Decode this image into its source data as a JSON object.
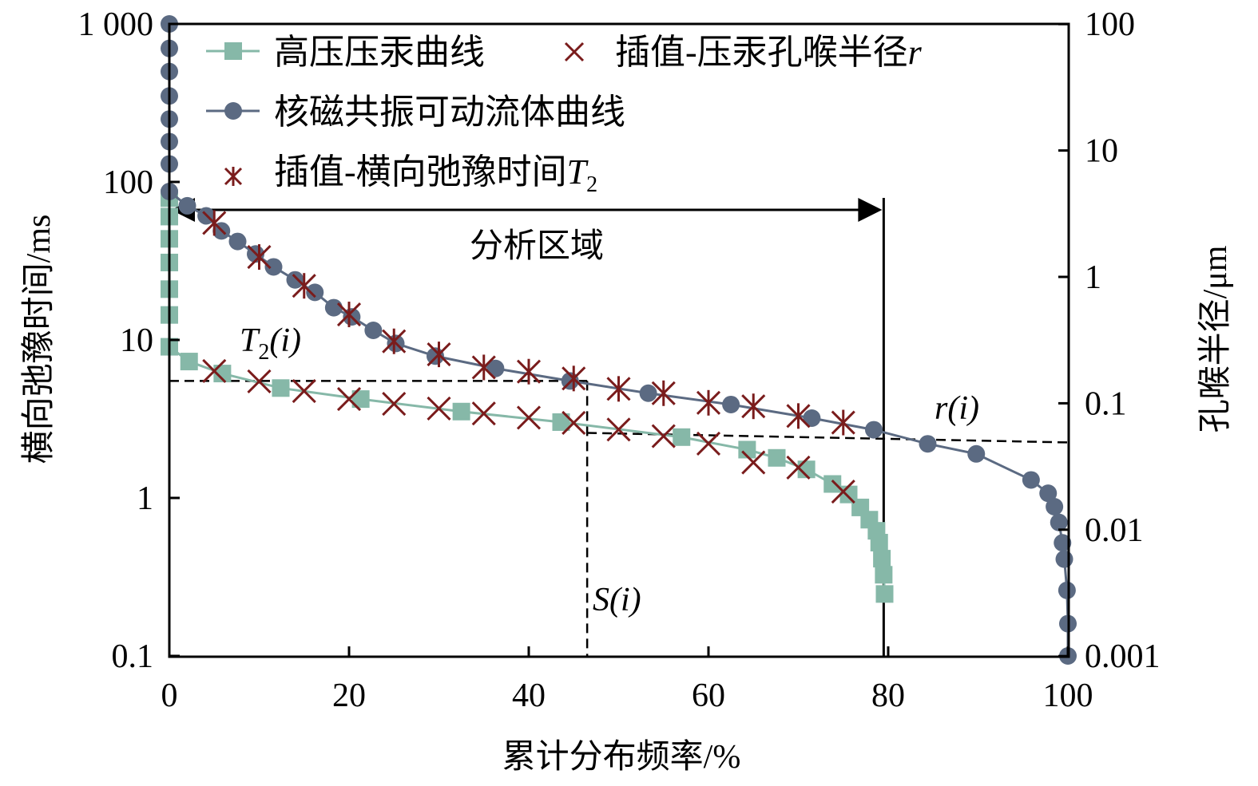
{
  "chart_data": {
    "type": "line",
    "xlabel": "累计分布频率/%",
    "ylabel_left": "横向弛豫时间/ms",
    "ylabel_right": "孔喉半径/μm",
    "xlim": [
      0,
      100
    ],
    "ylim_left": [
      0.1,
      1000
    ],
    "ylim_right": [
      0.001,
      100
    ],
    "yscale": "log",
    "x_ticks": [
      "0",
      "20",
      "40",
      "60",
      "80",
      "100"
    ],
    "y_left_ticks": [
      "1 000",
      "100",
      "10",
      "1",
      "0.1"
    ],
    "y_right_ticks": [
      "100",
      "10",
      "1",
      "0.1",
      "0.01",
      "0.001"
    ],
    "legend_position": "top-left",
    "series": [
      {
        "name": "高压压汞曲线",
        "axis": "right",
        "marker": "square",
        "color": "#86b8a8",
        "x": [
          0,
          0,
          0,
          0,
          0,
          0,
          0,
          2.2,
          5.9,
          12.4,
          21.3,
          32.5,
          43.6,
          57.0,
          64.3,
          67.6,
          70.9,
          73.8,
          75.6,
          76.9,
          77.9,
          78.7,
          79.0,
          79.3,
          79.5,
          79.6
        ],
        "y": [
          4.2,
          3,
          2,
          1.3,
          0.8,
          0.5,
          0.28,
          0.214,
          0.172,
          0.132,
          0.108,
          0.086,
          0.071,
          0.054,
          0.043,
          0.037,
          0.03,
          0.023,
          0.019,
          0.015,
          0.012,
          0.0098,
          0.0079,
          0.0059,
          0.0044,
          0.0031
        ]
      },
      {
        "name": "核磁共振可动流体曲线",
        "axis": "left",
        "marker": "circle",
        "color": "#5b6a82",
        "x": [
          0,
          0,
          0,
          0,
          0,
          0,
          0,
          0,
          2.0,
          4.1,
          5.8,
          7.6,
          9.6,
          11.6,
          14.0,
          16.2,
          18.3,
          20.3,
          22.7,
          25.2,
          29.6,
          36.3,
          44.6,
          53.3,
          62.5,
          71.5,
          78.4,
          84.4,
          89.8,
          95.9,
          97.8,
          98.5,
          99.0,
          99.4,
          99.6,
          99.9,
          100,
          100
        ],
        "y": [
          1000,
          700,
          500,
          350,
          250,
          180,
          130,
          87,
          70.6,
          61,
          49,
          42,
          35,
          29,
          24,
          20,
          16,
          14,
          11.5,
          9.5,
          7.9,
          6.6,
          5.5,
          4.6,
          3.9,
          3.2,
          2.7,
          2.2,
          1.9,
          1.3,
          1.07,
          0.88,
          0.7,
          0.52,
          0.41,
          0.26,
          0.16,
          0.1
        ]
      },
      {
        "name": "插值-压汞孔喉半径r",
        "axis": "right",
        "marker": "x",
        "color": "#7a1c1c",
        "x": [
          5,
          10,
          15,
          20,
          25,
          30,
          35,
          40,
          45,
          50,
          55,
          60,
          65,
          70,
          75
        ],
        "y": [
          0.18,
          0.149,
          0.125,
          0.108,
          0.099,
          0.091,
          0.083,
          0.077,
          0.07,
          0.062,
          0.055,
          0.048,
          0.034,
          0.031,
          0.02
        ]
      },
      {
        "name": "插值-横向弛豫时间T2",
        "axis": "left",
        "marker": "asterisk",
        "color": "#7a1c1c",
        "x": [
          5,
          10,
          15,
          20,
          25,
          30,
          35,
          40,
          45,
          50,
          55,
          60,
          65,
          70,
          75
        ],
        "y": [
          55,
          33.5,
          22,
          14.5,
          9.8,
          8.1,
          6.7,
          6.3,
          5.7,
          4.9,
          4.6,
          4.0,
          3.8,
          3.3,
          3.0
        ]
      }
    ],
    "annotations": {
      "region_label": "分析区域",
      "region_x": [
        0,
        79.5
      ],
      "t2_label": "T",
      "t2_sub": "2",
      "t2_paren": "(i)",
      "s_label": "S(i)",
      "r_label": "r(i)",
      "s_x": 46.5,
      "t2_value": 5.5,
      "r_value": 0.049
    },
    "legend": {
      "l1": "高压压汞曲线",
      "l2a": "插值-压汞孔喉半径",
      "l2b": "r",
      "l3": "核磁共振可动流体曲线",
      "l4a": "插值-横向弛豫时间",
      "l4b": "T",
      "l4c": "2"
    }
  }
}
